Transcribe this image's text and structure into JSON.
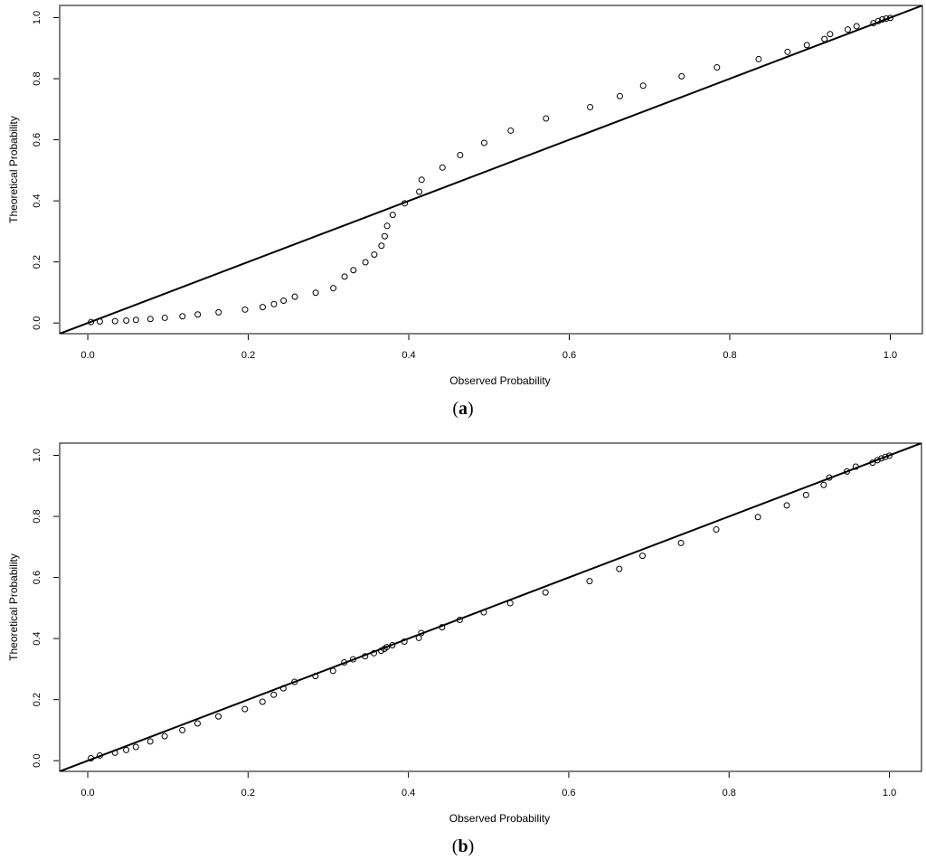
{
  "figure": {
    "panels": [
      {
        "label_open": "(",
        "label_letter": "a",
        "label_close": ")"
      },
      {
        "label_open": "(",
        "label_letter": "b",
        "label_close": ")"
      }
    ]
  },
  "chart_data": [
    {
      "type": "scatter",
      "title": "",
      "xlabel": "Observed Probability",
      "ylabel": "Theoretical Probability",
      "xlim": [
        -0.035,
        1.04
      ],
      "ylim": [
        -0.035,
        1.04
      ],
      "xticks": [
        "0.0",
        "0.2",
        "0.4",
        "0.6",
        "0.8",
        "1.0"
      ],
      "yticks": [
        "0.0",
        "0.2",
        "0.4",
        "0.6",
        "0.8",
        "1.0"
      ],
      "reference_line": {
        "slope": 1,
        "intercept": 0
      },
      "grid": false,
      "marker": "open-circle",
      "points": [
        [
          0.004,
          0.003
        ],
        [
          0.015,
          0.005
        ],
        [
          0.034,
          0.006
        ],
        [
          0.048,
          0.008
        ],
        [
          0.06,
          0.01
        ],
        [
          0.078,
          0.013
        ],
        [
          0.096,
          0.017
        ],
        [
          0.118,
          0.022
        ],
        [
          0.137,
          0.028
        ],
        [
          0.163,
          0.035
        ],
        [
          0.196,
          0.044
        ],
        [
          0.218,
          0.052
        ],
        [
          0.232,
          0.062
        ],
        [
          0.244,
          0.073
        ],
        [
          0.258,
          0.086
        ],
        [
          0.284,
          0.099
        ],
        [
          0.306,
          0.114
        ],
        [
          0.32,
          0.152
        ],
        [
          0.331,
          0.173
        ],
        [
          0.346,
          0.199
        ],
        [
          0.357,
          0.224
        ],
        [
          0.366,
          0.253
        ],
        [
          0.37,
          0.284
        ],
        [
          0.373,
          0.318
        ],
        [
          0.38,
          0.354
        ],
        [
          0.395,
          0.392
        ],
        [
          0.413,
          0.43
        ],
        [
          0.416,
          0.469
        ],
        [
          0.442,
          0.509
        ],
        [
          0.464,
          0.55
        ],
        [
          0.494,
          0.59
        ],
        [
          0.527,
          0.63
        ],
        [
          0.571,
          0.67
        ],
        [
          0.626,
          0.707
        ],
        [
          0.663,
          0.743
        ],
        [
          0.692,
          0.777
        ],
        [
          0.74,
          0.808
        ],
        [
          0.784,
          0.837
        ],
        [
          0.836,
          0.864
        ],
        [
          0.872,
          0.888
        ],
        [
          0.896,
          0.91
        ],
        [
          0.918,
          0.93
        ],
        [
          0.925,
          0.946
        ],
        [
          0.947,
          0.961
        ],
        [
          0.958,
          0.972
        ],
        [
          0.979,
          0.982
        ],
        [
          0.985,
          0.989
        ],
        [
          0.99,
          0.994
        ],
        [
          0.995,
          0.997
        ],
        [
          1.0,
          0.999
        ]
      ]
    },
    {
      "type": "scatter",
      "title": "",
      "xlabel": "Observed Probability",
      "ylabel": "Theoretical Probability",
      "xlim": [
        -0.035,
        1.04
      ],
      "ylim": [
        -0.035,
        1.04
      ],
      "xticks": [
        "0.0",
        "0.2",
        "0.4",
        "0.6",
        "0.8",
        "1.0"
      ],
      "yticks": [
        "0.0",
        "0.2",
        "0.4",
        "0.6",
        "0.8",
        "1.0"
      ],
      "reference_line": {
        "slope": 1,
        "intercept": 0
      },
      "grid": false,
      "marker": "open-circle",
      "points": [
        [
          0.004,
          0.008
        ],
        [
          0.015,
          0.017
        ],
        [
          0.034,
          0.026
        ],
        [
          0.048,
          0.035
        ],
        [
          0.06,
          0.045
        ],
        [
          0.078,
          0.063
        ],
        [
          0.096,
          0.08
        ],
        [
          0.118,
          0.1
        ],
        [
          0.137,
          0.122
        ],
        [
          0.163,
          0.145
        ],
        [
          0.196,
          0.169
        ],
        [
          0.218,
          0.193
        ],
        [
          0.232,
          0.216
        ],
        [
          0.244,
          0.237
        ],
        [
          0.258,
          0.258
        ],
        [
          0.284,
          0.277
        ],
        [
          0.306,
          0.294
        ],
        [
          0.32,
          0.322
        ],
        [
          0.331,
          0.332
        ],
        [
          0.346,
          0.342
        ],
        [
          0.357,
          0.352
        ],
        [
          0.366,
          0.36
        ],
        [
          0.37,
          0.366
        ],
        [
          0.373,
          0.372
        ],
        [
          0.38,
          0.378
        ],
        [
          0.395,
          0.39
        ],
        [
          0.413,
          0.402
        ],
        [
          0.416,
          0.418
        ],
        [
          0.442,
          0.437
        ],
        [
          0.464,
          0.461
        ],
        [
          0.494,
          0.486
        ],
        [
          0.527,
          0.516
        ],
        [
          0.571,
          0.551
        ],
        [
          0.626,
          0.588
        ],
        [
          0.663,
          0.628
        ],
        [
          0.692,
          0.671
        ],
        [
          0.74,
          0.713
        ],
        [
          0.784,
          0.757
        ],
        [
          0.836,
          0.798
        ],
        [
          0.872,
          0.836
        ],
        [
          0.896,
          0.87
        ],
        [
          0.918,
          0.903
        ],
        [
          0.925,
          0.927
        ],
        [
          0.947,
          0.947
        ],
        [
          0.958,
          0.963
        ],
        [
          0.979,
          0.976
        ],
        [
          0.985,
          0.984
        ],
        [
          0.99,
          0.99
        ],
        [
          0.995,
          0.995
        ],
        [
          1.0,
          0.999
        ]
      ]
    }
  ]
}
